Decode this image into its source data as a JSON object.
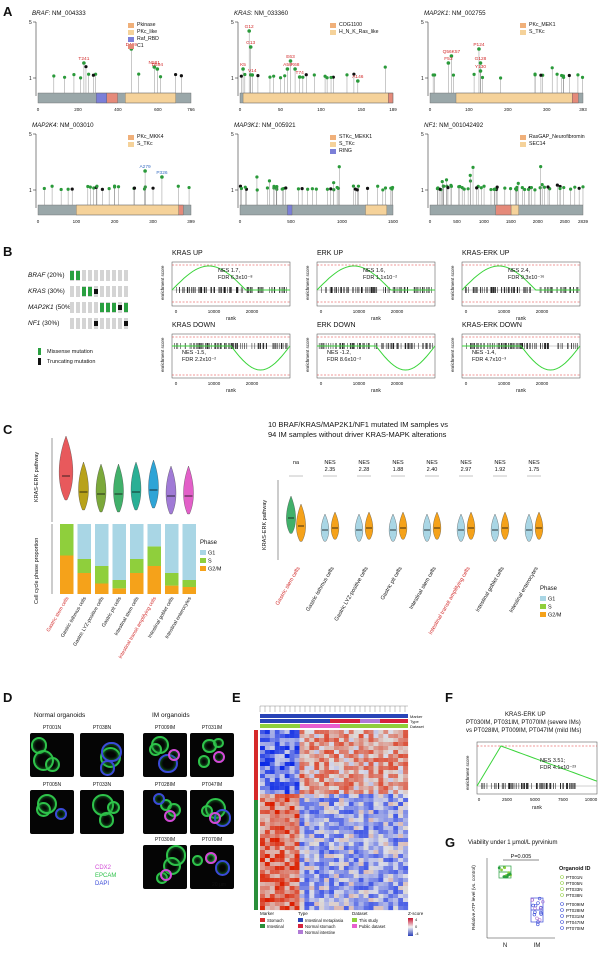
{
  "panels": {
    "A": "A",
    "B": "B",
    "C": "C",
    "D": "D",
    "E": "E",
    "F": "F",
    "G": "G"
  },
  "panelA": {
    "genes": [
      {
        "id": "braf",
        "gene": "BRAF",
        "accession": ": NM_004333",
        "ymax": "5",
        "ymid": "1",
        "axis_end": "766",
        "ticks": [
          "0",
          "200",
          "400",
          "600"
        ],
        "legend": [
          {
            "label": "Pkinase",
            "color": "#f0b07a"
          },
          {
            "label": "PKc_like",
            "color": "#f5d29a"
          },
          {
            "label": "Raf_RBD",
            "color": "#7b7fd8"
          },
          {
            "label": "C1",
            "color": "#e58a7a"
          }
        ],
        "mutations": [
          "T241",
          "D469",
          "N581",
          "D594"
        ]
      },
      {
        "id": "kras",
        "gene": "KRAS",
        "accession": ": NM_033360",
        "ymax": "5",
        "ymid": "1",
        "axis_end": "189",
        "ticks": [
          "0",
          "50",
          "100",
          "150"
        ],
        "legend": [
          {
            "label": "COG1100",
            "color": "#f0b07a"
          },
          {
            "label": "H_N_K_Ras_like",
            "color": "#f5d29a"
          }
        ],
        "mutations": [
          "G12",
          "G13",
          "K5",
          "V14",
          "E63",
          "A59",
          "R68",
          "T74",
          "A146"
        ]
      },
      {
        "id": "map2k1",
        "gene": "MAP2K1",
        "accession": ": NM_002755",
        "ymax": "5",
        "ymid": "1",
        "axis_end": "393",
        "ticks": [
          "0",
          "100",
          "200",
          "300"
        ],
        "legend": [
          {
            "label": "PKc_MEK1",
            "color": "#f0b07a"
          },
          {
            "label": "S_TKc",
            "color": "#f5d29a"
          }
        ],
        "mutations": [
          "Q56K57",
          "P124",
          "F53",
          "G128",
          "Y130"
        ]
      },
      {
        "id": "map2k4",
        "gene": "MAP2K4",
        "accession": ": NM_003010",
        "ymax": "5",
        "ymid": "1",
        "axis_end": "399",
        "ticks": [
          "0",
          "100",
          "200",
          "300"
        ],
        "legend": [
          {
            "label": "PKc_MKK4",
            "color": "#f0b07a"
          },
          {
            "label": "S_TKc",
            "color": "#f5d29a"
          }
        ],
        "mutations": [
          "A279",
          "P326"
        ]
      },
      {
        "id": "map3k1",
        "gene": "MAP3K1",
        "accession": ": NM_005921",
        "ymax": "5",
        "ymid": "1",
        "axis_end": "1500",
        "ticks": [
          "0",
          "500",
          "1000"
        ],
        "legend": [
          {
            "label": "STKc_MEKK1",
            "color": "#f0b07a"
          },
          {
            "label": "S_TKc",
            "color": "#f5d29a"
          },
          {
            "label": "RING",
            "color": "#7b7fd8"
          }
        ],
        "mutations": []
      },
      {
        "id": "nf1",
        "gene": "NF1",
        "accession": ": NM_001042492",
        "ymax": "5",
        "ymid": "1",
        "axis_end": "2839",
        "ticks": [
          "0",
          "500",
          "1000",
          "1500",
          "2000",
          "2500"
        ],
        "legend": [
          {
            "label": "RasGAP_Neurofibromin",
            "color": "#f0b07a"
          },
          {
            "label": "SEC14",
            "color": "#f5d29a"
          }
        ],
        "mutations": []
      }
    ]
  },
  "panelB": {
    "oncoprint": [
      {
        "gene": "BRAF",
        "pct": " (20%)"
      },
      {
        "gene": "KRAS",
        "pct": " (30%)"
      },
      {
        "gene": "MAP2K1",
        "pct": " (50%)"
      },
      {
        "gene": "NF1",
        "pct": " (30%)"
      }
    ],
    "legend_missense": "Missense mutation",
    "legend_truncating": "Truncating mutation",
    "ylabel": "enrichment score",
    "xlabel": "rank",
    "plots": [
      {
        "title": "KRAS UP",
        "nes": "NES 1.7,",
        "fdr": "FDR 6.3x10⁻⁸"
      },
      {
        "title": "ERK UP",
        "nes": "NES 1.6,",
        "fdr": "FDR 1.1x10⁻²"
      },
      {
        "title": "KRAS-ERK UP",
        "nes": "NES 2.4,",
        "fdr": "FDR 9.3x10⁻¹⁶"
      },
      {
        "title": "KRAS DOWN",
        "nes": "NES -1.5,",
        "fdr": "FDR 2.2x10⁻²"
      },
      {
        "title": "ERK DOWN",
        "nes": "NES -1.2,",
        "fdr": "FDR 8.6x10⁻²"
      },
      {
        "title": "KRAS-ERK DOWN",
        "nes": "NES -1.4,",
        "fdr": "FDR 4.7x10⁻³"
      }
    ],
    "xticks": [
      "0",
      "10000",
      "20000"
    ]
  },
  "panelC": {
    "left_ylabel_top": "KRAS-ERK pathway",
    "left_ylabel_bottom": "Cell cycle phase proportion",
    "phase_title": "Phase",
    "phases": [
      {
        "label": "G1",
        "color": "#a9d6e5"
      },
      {
        "label": "S",
        "color": "#8fcf3c"
      },
      {
        "label": "G2/M",
        "color": "#f5a21a"
      }
    ],
    "cell_types": [
      "Gastric stem cells",
      "Gastric isthmus cells",
      "Gastric LYZ-positive cells",
      "Gastric pit cells",
      "Intestinal stem cells",
      "Intestinal transit amplifying cells",
      "Intestinal goblet cells",
      "Intestinal enterocytes"
    ],
    "right_title_line1": "10 BRAF/KRAS/MAP2K1/NF1 mutated IM samples vs",
    "right_title_line2": "94 IM samples without driver KRAS-MAPK alterations",
    "nes_values": [
      "na",
      "NES\n2.35",
      "NES\n2.28",
      "NES\n1.88",
      "NES\n2.40",
      "NES\n2.97",
      "NES\n1.92",
      "NES\n1.75"
    ],
    "right_ylabel": "KRAS-ERK pathway"
  },
  "chart_data": [
    {
      "type": "bar",
      "title": "Cell cycle phase proportion",
      "categories": [
        "Gastric stem cells",
        "Gastric isthmus cells",
        "Gastric LYZ-positive cells",
        "Gastric pit cells",
        "Intestinal stem cells",
        "Intestinal transit amplifying cells",
        "Intestinal goblet cells",
        "Intestinal enterocytes"
      ],
      "series": [
        {
          "name": "G2/M",
          "values": [
            0.55,
            0.3,
            0.15,
            0.08,
            0.3,
            0.4,
            0.12,
            0.1
          ]
        },
        {
          "name": "S",
          "values": [
            0.45,
            0.2,
            0.25,
            0.12,
            0.2,
            0.28,
            0.18,
            0.1
          ]
        },
        {
          "name": "G1",
          "values": [
            0.0,
            0.5,
            0.6,
            0.8,
            0.5,
            0.32,
            0.7,
            0.8
          ]
        }
      ],
      "ylim": [
        0,
        1
      ]
    }
  ],
  "panelD": {
    "normal_title": "Normal organoids",
    "im_title": "IM organoids",
    "normal": [
      "PT001N",
      "PT038N",
      "PT005N",
      "PT033N"
    ],
    "im": [
      "PT009IM",
      "PT031IM",
      "PT028IM",
      "PT047IM",
      "PT030IM",
      "PT070IM"
    ],
    "stains": [
      {
        "label": "CDX2",
        "color": "#d24ad6"
      },
      {
        "label": "EPCAM",
        "color": "#2ec24a"
      },
      {
        "label": "DAPI",
        "color": "#3a4bd8"
      }
    ],
    "scale": "20 μm"
  },
  "panelE": {
    "marker_title": "Marker",
    "markers": [
      {
        "label": "Stomach",
        "color": "#d62a2a"
      },
      {
        "label": "Intestinal",
        "color": "#2a8f3a"
      }
    ],
    "type_title": "Type",
    "types": [
      {
        "label": "Intestinal metaplasia",
        "color": "#2a45b8"
      },
      {
        "label": "Normal stomach",
        "color": "#d6243e"
      },
      {
        "label": "Normal intestine",
        "color": "#b07ad6"
      }
    ],
    "dataset_title": "Dataset",
    "datasets": [
      {
        "label": "This study",
        "color": "#8fcf3c"
      },
      {
        "label": "Public dataset",
        "color": "#e85fd0"
      }
    ],
    "zscore_title": "Z-score",
    "zticks": [
      "4",
      "0",
      "-4"
    ],
    "top_labels": [
      "Marker",
      "Type",
      "Dataset"
    ]
  },
  "panelF": {
    "title_line1": "KRAS-ERK UP",
    "title_line2": "PT030IM, PT031IM, PT070IM (severe IMs)",
    "title_line3": "vs PT028IM, PT009IM, PT047IM (mild IMs)",
    "nes": "NES 3.51;",
    "fdr": "FDR 4.1x10⁻²³",
    "ylabel": "enrichment score",
    "xlabel": "rank",
    "xticks": [
      "0",
      "2500",
      "5000",
      "7500",
      "10000"
    ]
  },
  "panelG": {
    "title": "Viability under 1 μmol/L pyrvinium",
    "pvalue": "P=0.005",
    "ylabel": "Relative ATP level (vs. control)",
    "x": [
      "N",
      "IM"
    ],
    "legend_title": "Organoid ID",
    "ids_n": [
      "PT001N",
      "PT005N",
      "PT033N",
      "PT038N"
    ],
    "ids_im": [
      "PT009IM",
      "PT028IM",
      "PT031IM",
      "PT047IM",
      "PT070IM"
    ]
  }
}
